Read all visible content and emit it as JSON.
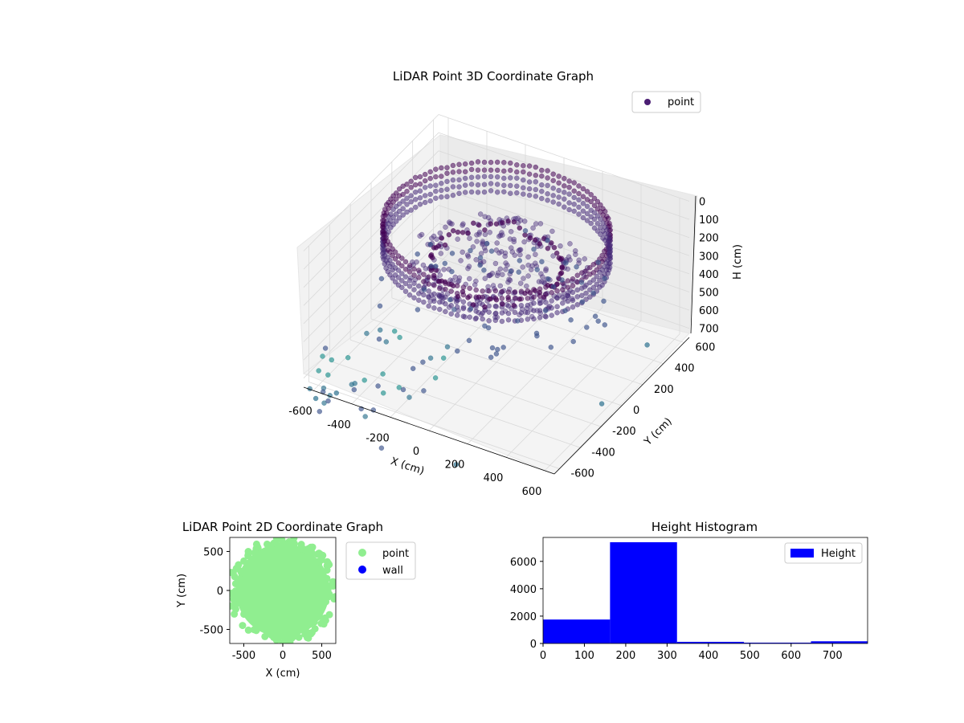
{
  "chart_data": [
    {
      "type": "scatter",
      "dimensions": 3,
      "title": "LiDAR Point 3D Coordinate Graph",
      "xlabel": "X (cm)",
      "ylabel": "Y (cm)",
      "zlabel": "H (cm)",
      "x_ticks": [
        "-600",
        "-400",
        "-200",
        "0",
        "200",
        "400",
        "600"
      ],
      "y_ticks": [
        "-600",
        "-400",
        "-200",
        "0",
        "200",
        "400",
        "600"
      ],
      "z_ticks": [
        "0",
        "100",
        "200",
        "300",
        "400",
        "500",
        "600",
        "700"
      ],
      "xlim": [
        -650,
        650
      ],
      "ylim": [
        -650,
        650
      ],
      "zlim": [
        750,
        0
      ],
      "z_inverted": true,
      "colormap": "viridis",
      "grid": true,
      "legend": {
        "position": "top-right",
        "entries": [
          {
            "label": "point",
            "color": "#4b1e73"
          }
        ]
      },
      "series": [
        {
          "name": "point",
          "description_points": [
            {
              "shape": "ring-wall",
              "radius": 520,
              "z_from": 0,
              "z_to": 200,
              "count": 110
            },
            {
              "shape": "inner-ring",
              "radius": 300,
              "z_from": 150,
              "z_to": 300,
              "count": 60
            },
            {
              "shape": "floor",
              "radius": 420,
              "z": 230,
              "count": 140
            }
          ],
          "outliers": [
            {
              "x": -560,
              "y": -700,
              "z": 750
            },
            {
              "x": -480,
              "y": -650,
              "z": 720
            },
            {
              "x": 200,
              "y": -760,
              "z": 800
            },
            {
              "x": 620,
              "y": 300,
              "z": 600
            },
            {
              "x": 600,
              "y": -100,
              "z": 700
            }
          ]
        }
      ]
    },
    {
      "type": "scatter",
      "title": "LiDAR Point 2D Coordinate Graph",
      "xlabel": "X (cm)",
      "ylabel": "Y (cm)",
      "x_ticks": [
        "-500",
        "0",
        "500"
      ],
      "y_ticks": [
        "500",
        "0",
        "-500"
      ],
      "xlim": [
        -680,
        680
      ],
      "ylim": [
        -680,
        680
      ],
      "legend": {
        "position": "outside-right",
        "entries": [
          {
            "label": "point",
            "color": "#90ee90"
          },
          {
            "label": "wall",
            "color": "#0000ff"
          }
        ]
      },
      "series": [
        {
          "name": "point",
          "color": "#90ee90",
          "shape": "filled-disc",
          "center": [
            0,
            0
          ],
          "radius": 600
        },
        {
          "name": "wall",
          "color": "#0000ff",
          "values": []
        }
      ]
    },
    {
      "type": "bar",
      "subtype": "histogram",
      "title": "Height Histogram",
      "x_ticks": [
        "0",
        "100",
        "200",
        "300",
        "400",
        "500",
        "600",
        "700"
      ],
      "y_ticks": [
        "0",
        "2000",
        "4000",
        "6000"
      ],
      "xlim": [
        0,
        785
      ],
      "ylim": [
        0,
        7750
      ],
      "legend": {
        "position": "top-right",
        "entries": [
          {
            "label": "Height",
            "color": "#0000ff"
          }
        ]
      },
      "series": [
        {
          "name": "Height",
          "color": "#0000ff",
          "bins": [
            {
              "from": 0,
              "to": 162,
              "count": 1750
            },
            {
              "from": 162,
              "to": 324,
              "count": 7400
            },
            {
              "from": 324,
              "to": 486,
              "count": 120
            },
            {
              "from": 486,
              "to": 648,
              "count": 60
            },
            {
              "from": 648,
              "to": 785,
              "count": 160
            }
          ]
        }
      ]
    }
  ]
}
